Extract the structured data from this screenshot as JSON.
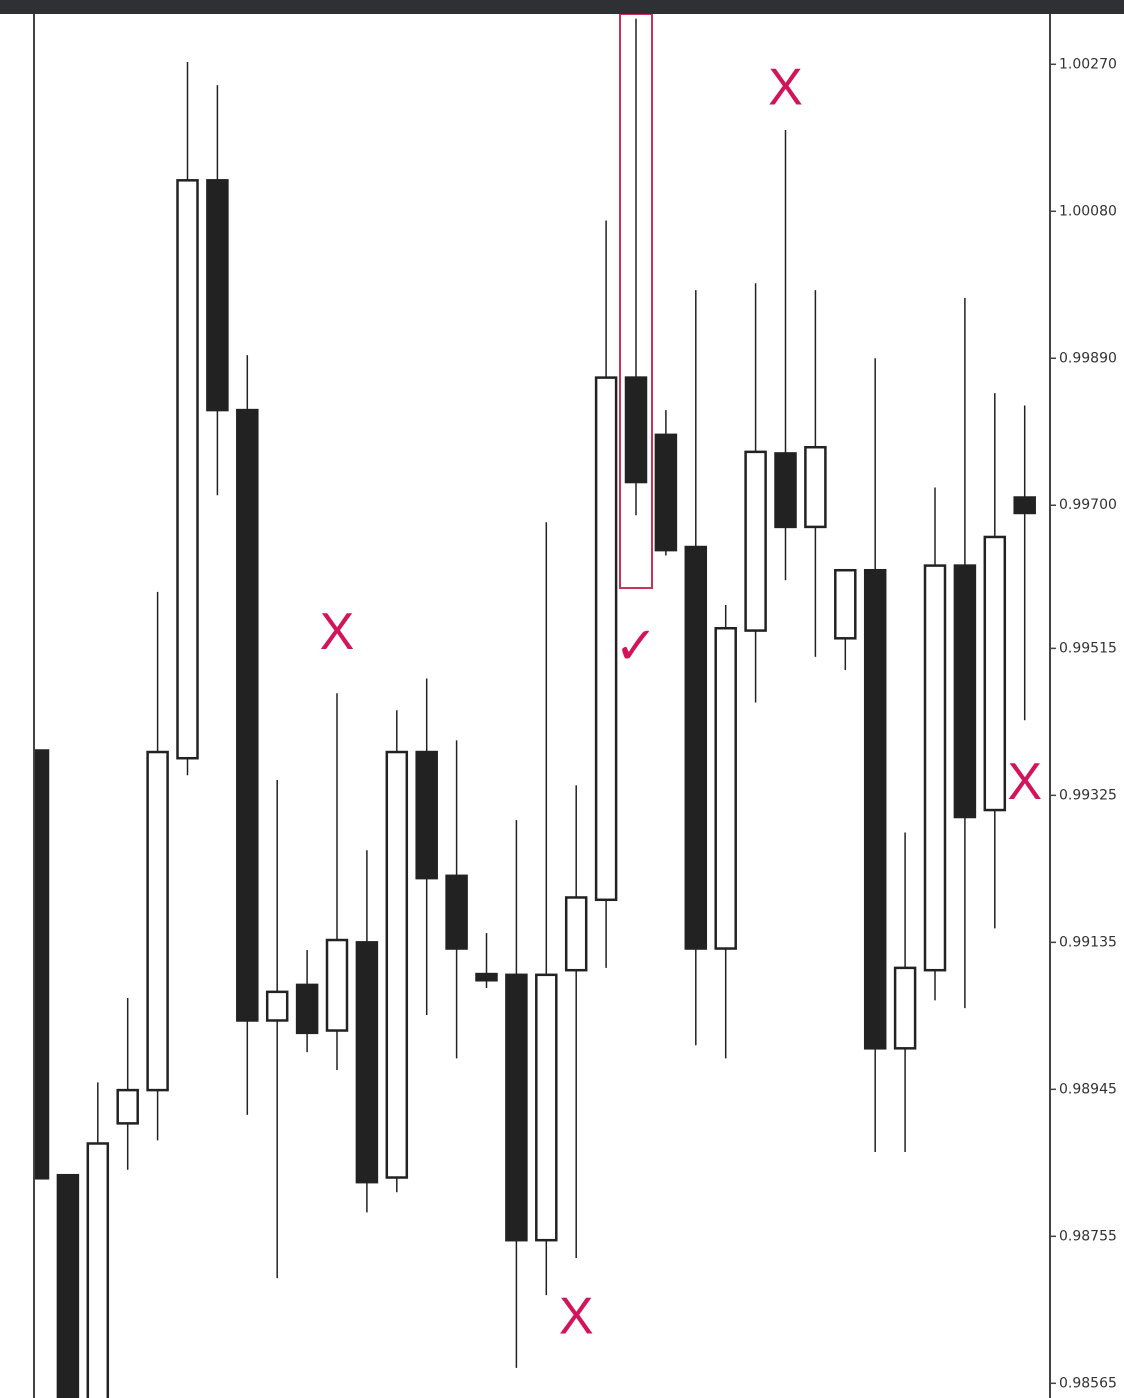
{
  "chart_data": {
    "type": "candlestick",
    "ylim": [
      0.98546,
      1.00335
    ],
    "yticks": [
      {
        "value": 1.0027,
        "label": "1.00270"
      },
      {
        "value": 1.0008,
        "label": "1.00080"
      },
      {
        "value": 0.9989,
        "label": "0.99890"
      },
      {
        "value": 0.997,
        "label": "0.99700"
      },
      {
        "value": 0.99515,
        "label": "0.99515"
      },
      {
        "value": 0.99325,
        "label": "0.99325"
      },
      {
        "value": 0.99135,
        "label": "0.99135"
      },
      {
        "value": 0.98945,
        "label": "0.98945"
      },
      {
        "value": 0.98755,
        "label": "0.98755"
      },
      {
        "value": 0.98565,
        "label": "0.98565"
      }
    ],
    "up_color": "#ffffff",
    "down_color": "#222222",
    "candles": [
      {
        "open": 0.99383,
        "high": 0.99383,
        "low": 0.9883,
        "close": 0.9883
      },
      {
        "open": 0.98834,
        "high": 0.98834,
        "low": 0.9854,
        "close": 0.9854
      },
      {
        "open": 0.9854,
        "high": 0.98954,
        "low": 0.9854,
        "close": 0.98875
      },
      {
        "open": 0.98901,
        "high": 0.99063,
        "low": 0.98841,
        "close": 0.98944
      },
      {
        "open": 0.98944,
        "high": 0.99588,
        "low": 0.98879,
        "close": 0.99381
      },
      {
        "open": 0.99373,
        "high": 1.00273,
        "low": 0.99351,
        "close": 1.0012
      },
      {
        "open": 1.0012,
        "high": 1.00243,
        "low": 0.99713,
        "close": 0.99823
      },
      {
        "open": 0.99823,
        "high": 0.99894,
        "low": 0.98912,
        "close": 0.99034
      },
      {
        "open": 0.99034,
        "high": 0.99345,
        "low": 0.98701,
        "close": 0.99071
      },
      {
        "open": 0.9908,
        "high": 0.99125,
        "low": 0.98993,
        "close": 0.99018
      },
      {
        "open": 0.99021,
        "high": 0.99457,
        "low": 0.9897,
        "close": 0.99138
      },
      {
        "open": 0.99135,
        "high": 0.99254,
        "low": 0.98786,
        "close": 0.98825
      },
      {
        "open": 0.98831,
        "high": 0.99435,
        "low": 0.98812,
        "close": 0.99381
      },
      {
        "open": 0.99381,
        "high": 0.99476,
        "low": 0.99041,
        "close": 0.99218
      },
      {
        "open": 0.99221,
        "high": 0.99396,
        "low": 0.98985,
        "close": 0.99127
      },
      {
        "open": 0.99094,
        "high": 0.99147,
        "low": 0.99076,
        "close": 0.99086
      },
      {
        "open": 0.99093,
        "high": 0.99293,
        "low": 0.98585,
        "close": 0.9875
      },
      {
        "open": 0.9875,
        "high": 0.99678,
        "low": 0.98679,
        "close": 0.99093
      },
      {
        "open": 0.99099,
        "high": 0.99338,
        "low": 0.98727,
        "close": 0.99193
      },
      {
        "open": 0.9919,
        "high": 1.00068,
        "low": 0.99102,
        "close": 0.99865
      },
      {
        "open": 0.99865,
        "high": 1.00329,
        "low": 0.99687,
        "close": 0.9973
      },
      {
        "open": 0.99791,
        "high": 0.99823,
        "low": 0.99635,
        "close": 0.99642
      },
      {
        "open": 0.99646,
        "high": 0.99978,
        "low": 0.99002,
        "close": 0.99127
      },
      {
        "open": 0.99127,
        "high": 0.99571,
        "low": 0.98985,
        "close": 0.99541
      },
      {
        "open": 0.99538,
        "high": 0.99987,
        "low": 0.99445,
        "close": 0.99769
      },
      {
        "open": 0.99767,
        "high": 1.00185,
        "low": 0.99603,
        "close": 0.99672
      },
      {
        "open": 0.99672,
        "high": 0.99978,
        "low": 0.99504,
        "close": 0.99775
      },
      {
        "open": 0.99528,
        "high": 0.99616,
        "low": 0.99487,
        "close": 0.99616
      },
      {
        "open": 0.99616,
        "high": 0.9989,
        "low": 0.98864,
        "close": 0.98998
      },
      {
        "open": 0.98998,
        "high": 0.99277,
        "low": 0.98864,
        "close": 0.99102
      },
      {
        "open": 0.99099,
        "high": 0.99723,
        "low": 0.9906,
        "close": 0.99622
      },
      {
        "open": 0.99622,
        "high": 0.99968,
        "low": 0.9905,
        "close": 0.99297
      },
      {
        "open": 0.99306,
        "high": 0.99845,
        "low": 0.99153,
        "close": 0.99659
      },
      {
        "open": 0.9971,
        "high": 0.99829,
        "low": 0.99422,
        "close": 0.9969
      }
    ],
    "highlight": {
      "candle": 20,
      "top": 1.00335,
      "bottom": 0.99593,
      "color": "#c8325a"
    },
    "annotations": [
      {
        "text": "X",
        "candle": 10,
        "value": 0.99532
      },
      {
        "text": "X",
        "candle": 18,
        "value": 0.98647
      },
      {
        "text": "✓",
        "candle": 20,
        "value": 0.99513
      },
      {
        "text": "X",
        "candle": 25,
        "value": 1.00236
      },
      {
        "text": "X",
        "candle": 33,
        "value": 0.99338
      }
    ]
  }
}
